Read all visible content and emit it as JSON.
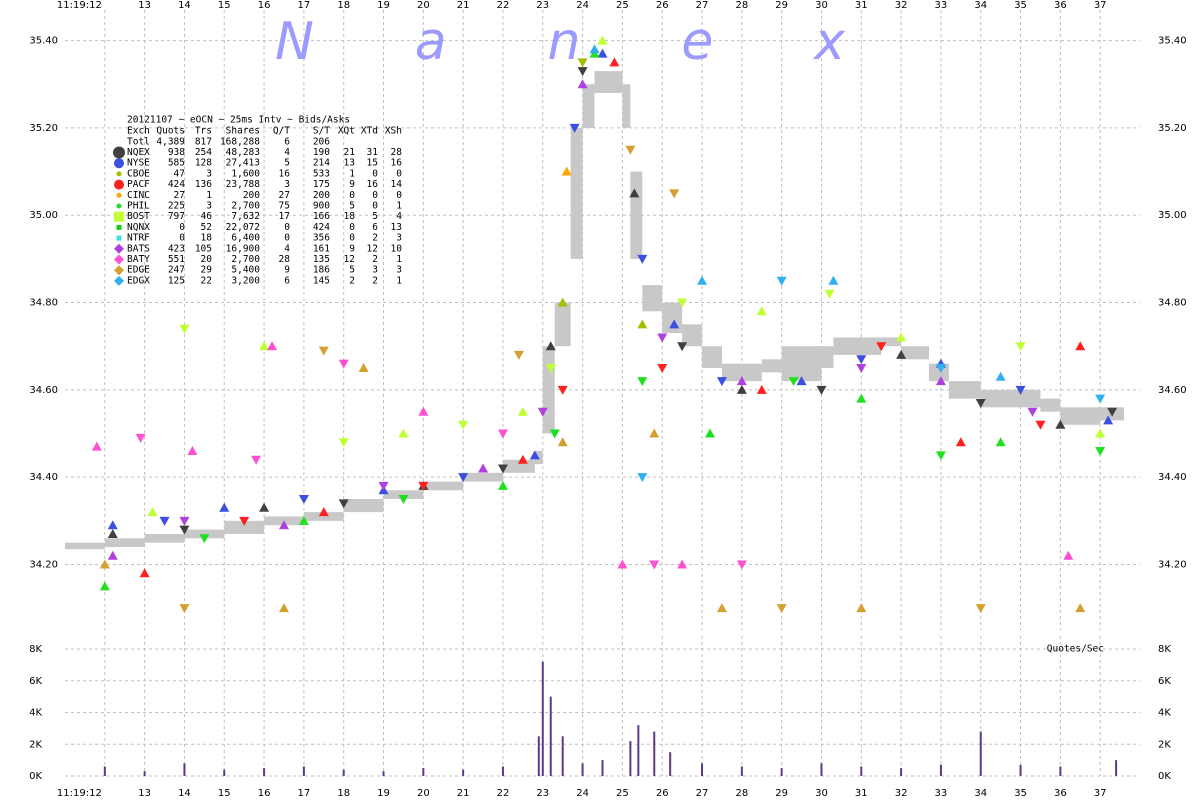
{
  "chart_data": [
    {
      "type": "scatter",
      "subtitle": "20121107 ~ eOCN ~ 25ms Intv ~ Bids/Asks",
      "watermark": "N a n e x",
      "xlim": [
        11,
        38
      ],
      "ylim": [
        34.05,
        35.47
      ],
      "grid": true,
      "xticks": [
        {
          "value": 12,
          "label": "11:19:12"
        },
        13,
        14,
        15,
        16,
        17,
        18,
        19,
        20,
        21,
        22,
        23,
        24,
        25,
        26,
        27,
        28,
        29,
        30,
        31,
        32,
        33,
        34,
        35,
        36,
        37
      ],
      "yticks": [
        {
          "value": 35.4,
          "label": "35.40"
        },
        {
          "value": 35.2,
          "label": "35.20"
        },
        {
          "value": 35.0,
          "label": "35.00"
        },
        {
          "value": 34.8,
          "label": "34.80"
        },
        {
          "value": 34.6,
          "label": "34.60"
        },
        {
          "value": 34.4,
          "label": "34.40"
        },
        {
          "value": 34.2,
          "label": "34.20"
        }
      ],
      "header": [
        "Exch",
        "Quots",
        "Trs",
        "Shares",
        "Q/T",
        "S/T",
        "XQt",
        "XTd",
        "XSh"
      ],
      "total": [
        "Totl",
        "4,389",
        "817",
        "168,288",
        "6",
        "206"
      ],
      "nbbo": {
        "color": "#c8c8c8",
        "x": [
          11.0,
          12.0,
          13.0,
          14.0,
          15.0,
          16.0,
          17.0,
          18.0,
          19.0,
          20.0,
          21.0,
          22.0,
          22.8,
          23.0,
          23.3,
          23.7,
          24.0,
          24.3,
          25.0,
          25.2,
          25.5,
          26.0,
          26.5,
          27.0,
          27.5,
          28.5,
          29.0,
          30.0,
          30.3,
          31.5,
          32.0,
          32.7,
          33.2,
          34.0,
          35.5,
          36.0,
          37.0
        ],
        "low": [
          34.235,
          34.24,
          34.25,
          34.26,
          34.27,
          34.29,
          34.3,
          34.32,
          34.35,
          34.37,
          34.39,
          34.41,
          34.43,
          34.5,
          34.7,
          34.9,
          35.2,
          35.28,
          35.2,
          34.9,
          34.78,
          34.73,
          34.7,
          34.65,
          34.62,
          34.64,
          34.62,
          34.65,
          34.68,
          34.7,
          34.67,
          34.62,
          34.58,
          34.56,
          34.55,
          34.52,
          34.53
        ],
        "high": [
          34.25,
          34.26,
          34.27,
          34.28,
          34.3,
          34.31,
          34.32,
          34.35,
          34.37,
          34.39,
          34.41,
          34.44,
          34.46,
          34.7,
          34.8,
          35.2,
          35.3,
          35.33,
          35.3,
          35.1,
          34.84,
          34.8,
          34.75,
          34.7,
          34.66,
          34.67,
          34.7,
          34.7,
          34.72,
          34.72,
          34.7,
          34.66,
          34.62,
          34.6,
          34.58,
          34.56,
          34.56
        ]
      },
      "series": [
        {
          "name": "NQEX",
          "color": "#404040",
          "marker": "bigcircle",
          "stats": [
            "938",
            "254",
            "48,283",
            "4",
            "190",
            "21",
            "31",
            "28"
          ],
          "x": [
            12.2,
            14,
            16,
            18,
            20,
            22,
            23.2,
            24,
            25.3,
            26.5,
            28,
            30,
            32,
            34,
            36,
            37.3
          ],
          "values": [
            34.27,
            34.28,
            34.33,
            34.34,
            34.38,
            34.42,
            34.7,
            35.33,
            35.05,
            34.7,
            34.6,
            34.6,
            34.68,
            34.57,
            34.52,
            34.55
          ]
        },
        {
          "name": "NYSE",
          "color": "#3b4fe0",
          "marker": "circle",
          "stats": [
            "585",
            "128",
            "27,413",
            "5",
            "214",
            "13",
            "15",
            "16"
          ],
          "x": [
            12.2,
            13.5,
            15,
            17,
            19,
            21,
            22.8,
            23.8,
            24.5,
            25.5,
            26.3,
            27.5,
            29.5,
            31,
            33,
            35,
            37.2
          ],
          "values": [
            34.29,
            34.3,
            34.33,
            34.35,
            34.37,
            34.4,
            34.45,
            35.2,
            35.37,
            34.9,
            34.75,
            34.62,
            34.62,
            34.67,
            34.66,
            34.6,
            34.53
          ]
        },
        {
          "name": "CBOE",
          "color": "#a0c000",
          "marker": "dot",
          "stats": [
            "47",
            "3",
            "1,600",
            "16",
            "533",
            "1",
            "0",
            "0"
          ],
          "x": [
            23.5,
            24,
            25.5
          ],
          "values": [
            34.8,
            35.35,
            34.75
          ]
        },
        {
          "name": "PACF",
          "color": "#ff2020",
          "marker": "circle",
          "stats": [
            "424",
            "136",
            "23,788",
            "3",
            "175",
            "9",
            "16",
            "14"
          ],
          "x": [
            13,
            15.5,
            17.5,
            20,
            22.5,
            23.5,
            24.8,
            26,
            28.5,
            31.5,
            33.5,
            35.5,
            36.5
          ],
          "values": [
            34.18,
            34.3,
            34.32,
            34.38,
            34.44,
            34.6,
            35.35,
            34.65,
            34.6,
            34.7,
            34.48,
            34.52,
            34.7
          ]
        },
        {
          "name": "CINC",
          "color": "#ffa500",
          "marker": "dot",
          "stats": [
            "27",
            "1",
            "200",
            "27",
            "200",
            "0",
            "0",
            "0"
          ],
          "x": [
            23.6
          ],
          "values": [
            35.1
          ]
        },
        {
          "name": "PHIL",
          "color": "#20e020",
          "marker": "dot",
          "stats": [
            "225",
            "3",
            "2,700",
            "75",
            "900",
            "5",
            "0",
            "1"
          ],
          "x": [
            12,
            14.5,
            17,
            19.5,
            22,
            23.3,
            24.3,
            25.5,
            27.2,
            29.3,
            31,
            33,
            34.5,
            37
          ],
          "values": [
            34.15,
            34.26,
            34.3,
            34.35,
            34.38,
            34.5,
            35.37,
            34.62,
            34.5,
            34.62,
            34.58,
            34.45,
            34.48,
            34.46
          ]
        },
        {
          "name": "BOST",
          "color": "#c0ff30",
          "marker": "square",
          "stats": [
            "797",
            "46",
            "7,632",
            "17",
            "166",
            "18",
            "5",
            "4"
          ],
          "x": [
            13.2,
            14,
            16,
            18,
            19.5,
            21,
            22.5,
            23.2,
            24.5,
            26.5,
            28.5,
            30.2,
            32,
            35,
            37
          ],
          "values": [
            34.32,
            34.74,
            34.7,
            34.48,
            34.5,
            34.52,
            34.55,
            34.65,
            35.4,
            34.8,
            34.78,
            34.82,
            34.72,
            34.7,
            34.5
          ]
        },
        {
          "name": "NQNX",
          "color": "#10d010",
          "marker": "smallsquare",
          "stats": [
            "0",
            "52",
            "22,072",
            "0",
            "424",
            "0",
            "6",
            "13"
          ],
          "x": [],
          "values": []
        },
        {
          "name": "NTRF",
          "color": "#40e0e0",
          "marker": "smallsquare",
          "stats": [
            "0",
            "18",
            "6,400",
            "0",
            "356",
            "0",
            "2",
            "3"
          ],
          "x": [],
          "values": []
        },
        {
          "name": "BATS",
          "color": "#b040e0",
          "marker": "diamond",
          "stats": [
            "423",
            "105",
            "16,900",
            "4",
            "161",
            "9",
            "12",
            "10"
          ],
          "x": [
            12.2,
            14,
            16.5,
            19,
            21.5,
            23,
            24,
            26,
            28,
            31,
            33,
            35.3
          ],
          "values": [
            34.22,
            34.3,
            34.29,
            34.38,
            34.42,
            34.55,
            35.3,
            34.72,
            34.62,
            34.65,
            34.62,
            34.55
          ]
        },
        {
          "name": "BATY",
          "color": "#ff50d0",
          "marker": "diamond",
          "stats": [
            "551",
            "20",
            "2,700",
            "28",
            "135",
            "12",
            "2",
            "1"
          ],
          "x": [
            11.8,
            12.9,
            14.2,
            15.8,
            16.2,
            18,
            20,
            22,
            25,
            25.8,
            26.5,
            28,
            36.2
          ],
          "values": [
            34.47,
            34.49,
            34.46,
            34.44,
            34.7,
            34.66,
            34.55,
            34.5,
            34.2,
            34.2,
            34.2,
            34.2,
            34.22
          ]
        },
        {
          "name": "EDGE",
          "color": "#d4a030",
          "marker": "diamond",
          "stats": [
            "247",
            "29",
            "5,400",
            "9",
            "186",
            "5",
            "3",
            "3"
          ],
          "x": [
            12,
            14,
            16.5,
            17.5,
            18.5,
            22.4,
            23.5,
            25.2,
            25.8,
            26.3,
            27.5,
            29,
            31,
            34,
            36.5
          ],
          "values": [
            34.2,
            34.1,
            34.1,
            34.69,
            34.65,
            34.68,
            34.48,
            35.15,
            34.5,
            35.05,
            34.1,
            34.1,
            34.1,
            34.1,
            34.1
          ]
        },
        {
          "name": "EDGX",
          "color": "#30b0f0",
          "marker": "diamond",
          "stats": [
            "125",
            "22",
            "3,200",
            "6",
            "145",
            "2",
            "2",
            "1"
          ],
          "x": [
            24.3,
            25.5,
            27,
            29,
            30.3,
            33,
            34.5,
            37
          ],
          "values": [
            35.38,
            34.4,
            34.85,
            34.85,
            34.85,
            34.65,
            34.63,
            34.58
          ]
        }
      ]
    },
    {
      "type": "bar",
      "title": "Quotes/Sec",
      "color": "#5a3a8a",
      "grid": true,
      "xlim": [
        11,
        38
      ],
      "ylim": [
        0,
        8000
      ],
      "xticks": [
        {
          "value": 12,
          "label": "11:19:12"
        },
        13,
        14,
        15,
        16,
        17,
        18,
        19,
        20,
        21,
        22,
        23,
        24,
        25,
        26,
        27,
        28,
        29,
        30,
        31,
        32,
        33,
        34,
        35,
        36,
        37
      ],
      "yticks": [
        {
          "value": 8000,
          "label": "8K"
        },
        {
          "value": 6000,
          "label": "6K"
        },
        {
          "value": 4000,
          "label": "4K"
        },
        {
          "value": 2000,
          "label": "2K"
        },
        {
          "value": 0,
          "label": "0K"
        }
      ],
      "x": [
        12,
        13,
        14,
        15,
        16,
        17,
        18,
        19,
        20,
        21,
        22,
        22.9,
        23,
        23.2,
        23.5,
        24,
        24.5,
        25.2,
        25.4,
        25.8,
        26.2,
        27,
        28,
        29,
        30,
        31,
        32,
        33,
        34,
        35,
        36,
        37.4
      ],
      "values": [
        600,
        300,
        800,
        400,
        500,
        600,
        400,
        300,
        500,
        400,
        600,
        2500,
        7200,
        5000,
        2500,
        800,
        1000,
        2200,
        3200,
        2800,
        1500,
        800,
        600,
        500,
        800,
        600,
        500,
        700,
        2800,
        700,
        600,
        1000
      ]
    }
  ]
}
